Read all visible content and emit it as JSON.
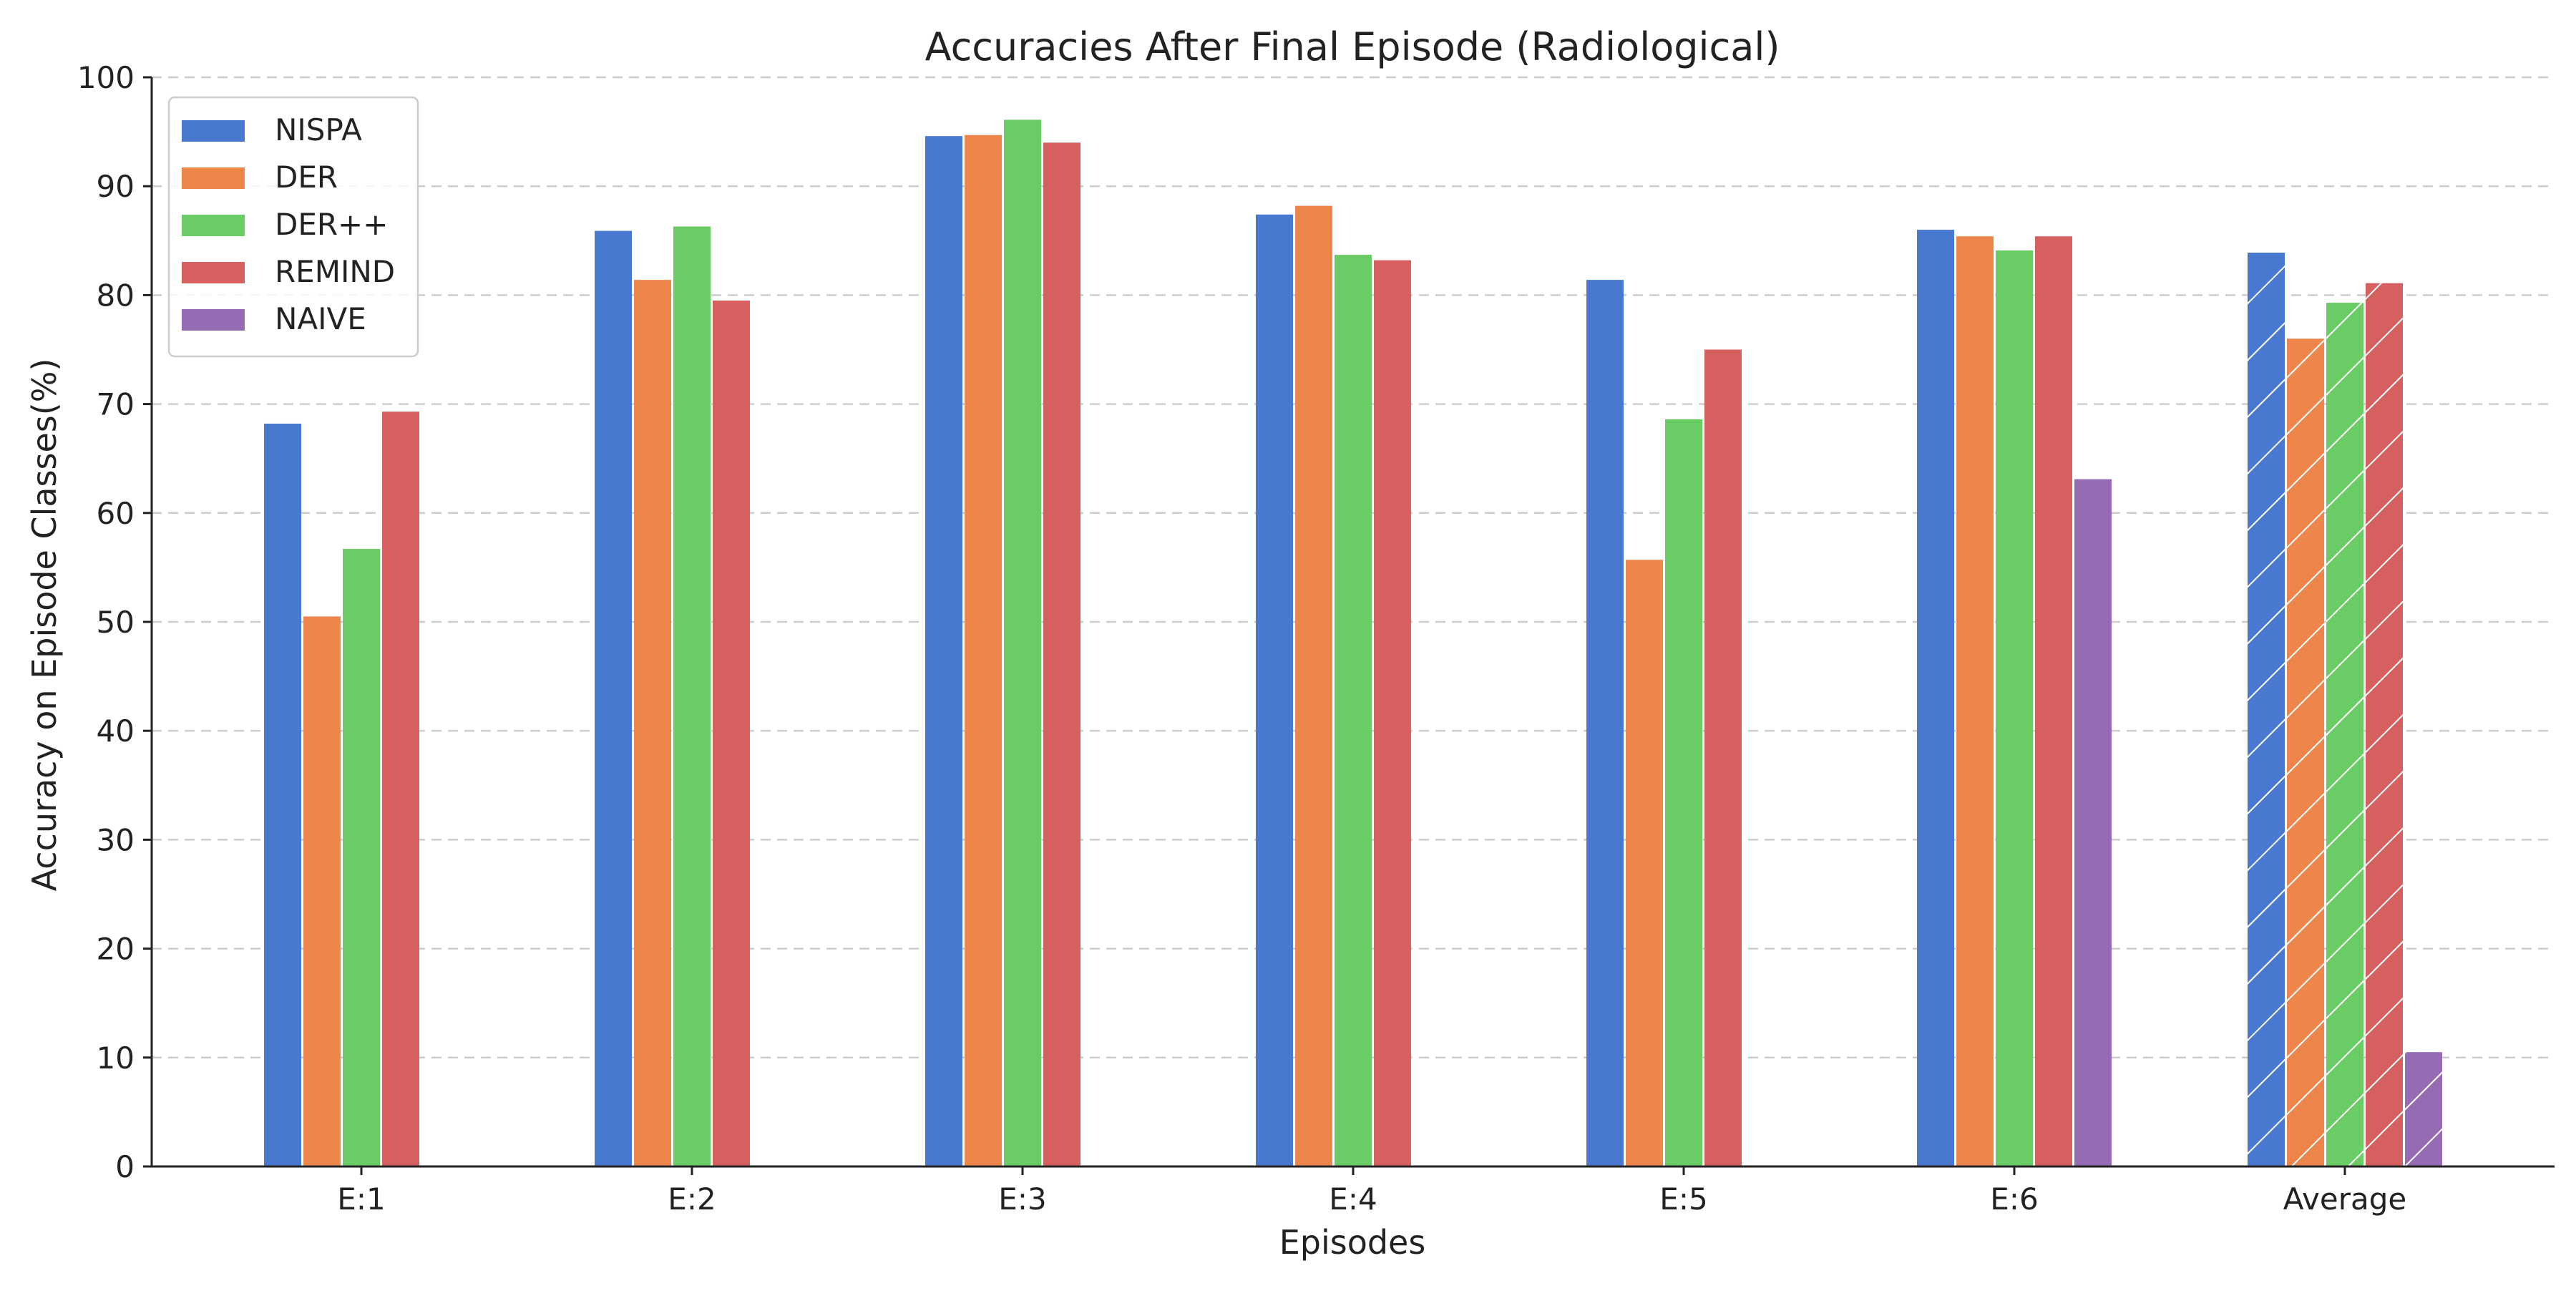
{
  "chart_data": {
    "type": "bar",
    "title": "Accuracies After Final Episode (Radiological)",
    "xlabel": "Episodes",
    "ylabel": "Accuracy on Episode Classes(%)",
    "ylim": [
      0,
      100
    ],
    "yticks": [
      0,
      10,
      20,
      30,
      40,
      50,
      60,
      70,
      80,
      90,
      100
    ],
    "grid": "horizontal dashed",
    "legend_position": "top-left",
    "categories": [
      "E:1",
      "E:2",
      "E:3",
      "E:4",
      "E:5",
      "E:6",
      "Average"
    ],
    "hatched_category": "Average",
    "series": [
      {
        "name": "NISPA",
        "color": "#4878d0",
        "values": [
          68.2,
          85.9,
          94.6,
          87.4,
          81.4,
          86.0,
          83.9
        ]
      },
      {
        "name": "DER",
        "color": "#ee854a",
        "values": [
          50.5,
          81.4,
          94.7,
          88.2,
          55.7,
          85.4,
          76.0
        ]
      },
      {
        "name": "DER++",
        "color": "#6acc64",
        "values": [
          56.7,
          86.3,
          96.1,
          83.7,
          68.6,
          84.1,
          79.3
        ]
      },
      {
        "name": "REMIND",
        "color": "#d65f5f",
        "values": [
          69.3,
          79.5,
          94.0,
          83.2,
          75.0,
          85.4,
          81.1
        ]
      },
      {
        "name": "NAIVE",
        "color": "#956cb4",
        "values": [
          null,
          null,
          null,
          null,
          null,
          63.1,
          10.5
        ]
      }
    ]
  }
}
